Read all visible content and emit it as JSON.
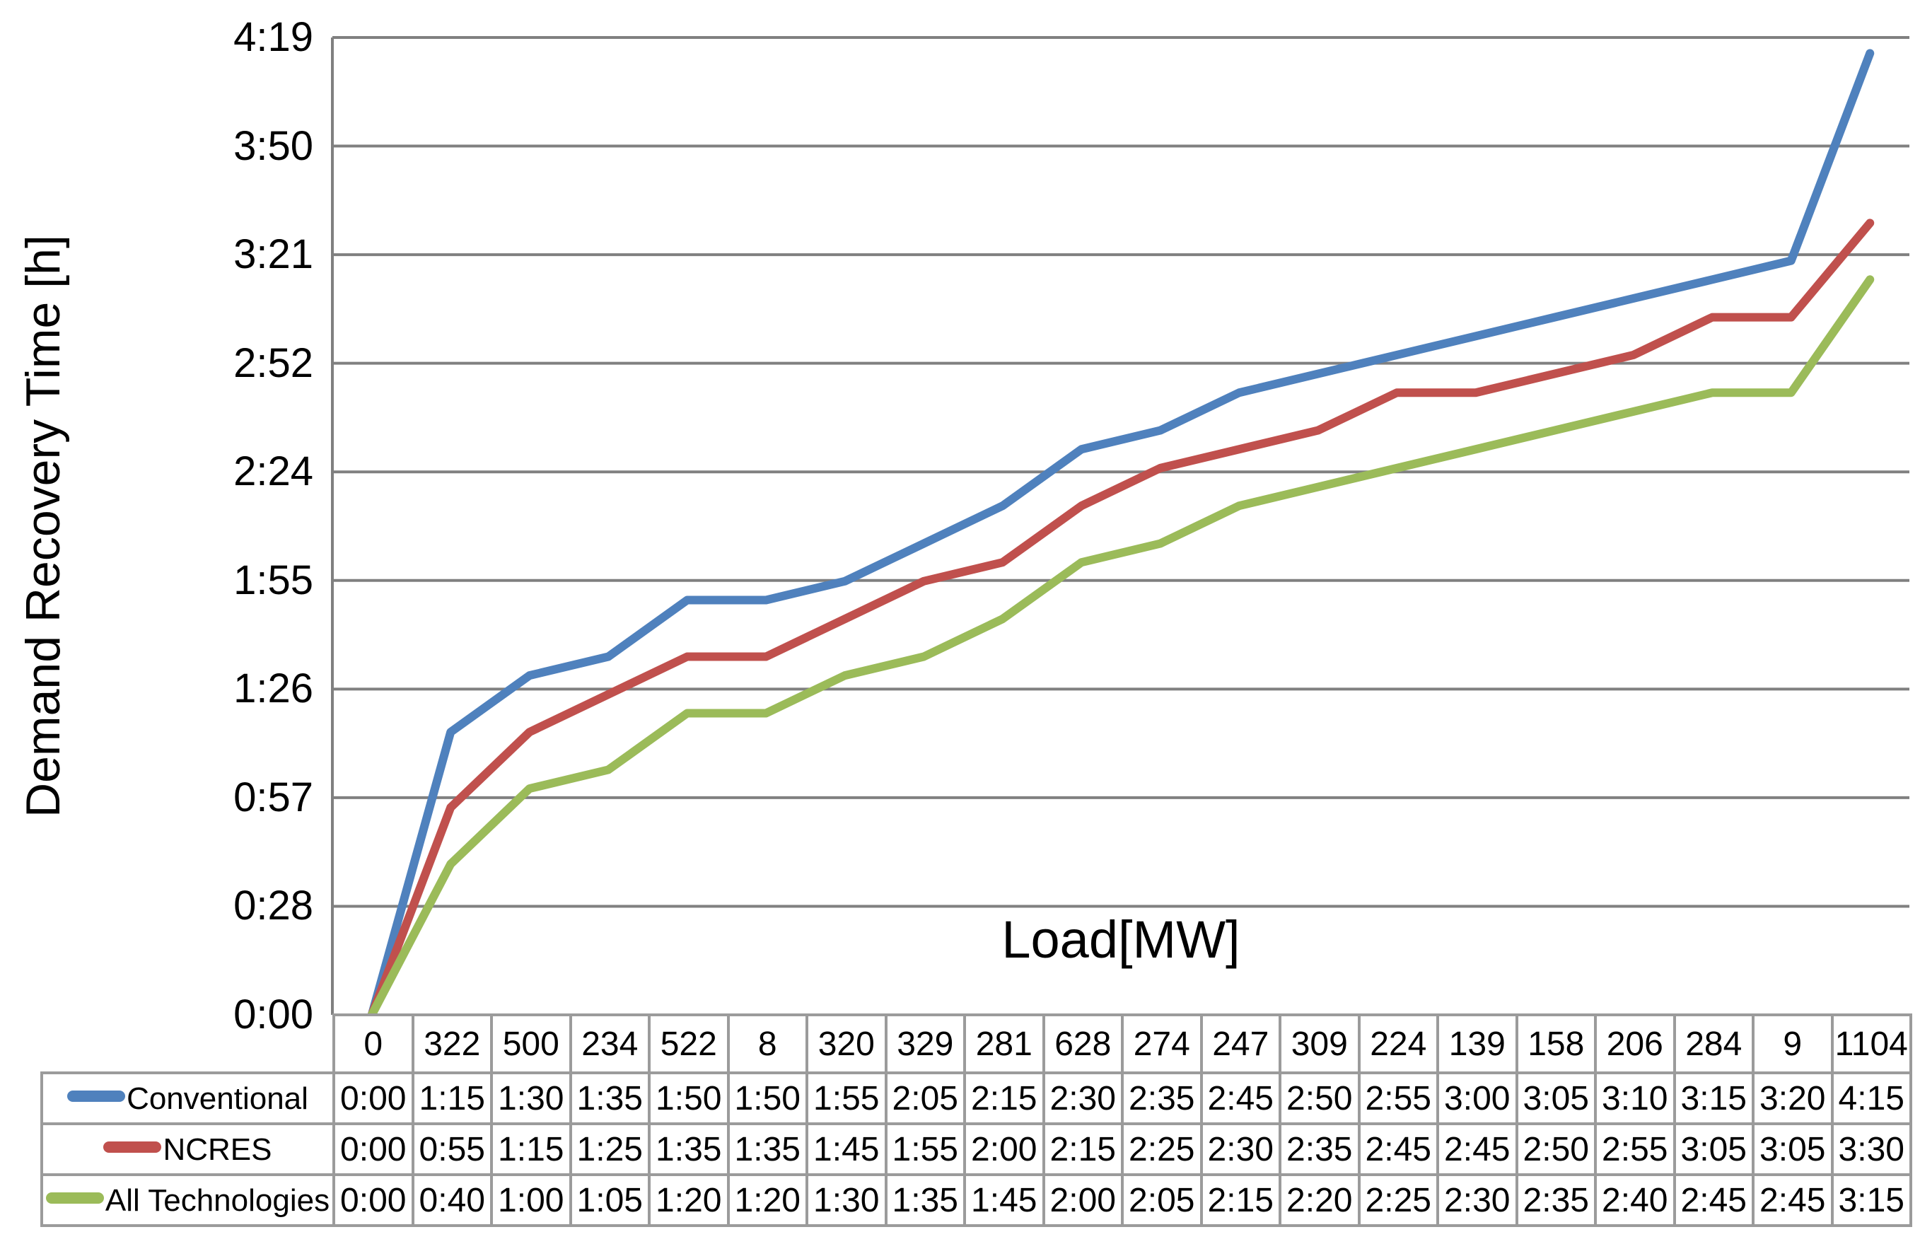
{
  "chart_data": {
    "type": "line",
    "title": "",
    "xlabel": "Load[MW]",
    "ylabel": "Demand Recovery Time [h]",
    "categories": [
      "0",
      "322",
      "500",
      "234",
      "522",
      "8",
      "320",
      "329",
      "281",
      "628",
      "274",
      "247",
      "309",
      "224",
      "139",
      "158",
      "206",
      "284",
      "9",
      "1104"
    ],
    "y_ticks": [
      "0:00",
      "0:28",
      "0:57",
      "1:26",
      "1:55",
      "2:24",
      "2:52",
      "3:21",
      "3:50",
      "4:19"
    ],
    "y_axis": {
      "min_minutes": 0,
      "max_minutes": 259.2,
      "unit": "h:mm"
    },
    "grid": true,
    "legend_position": "table-left",
    "series": [
      {
        "name": "Conventional",
        "color": "#4F81BD",
        "values": [
          "0:00",
          "1:15",
          "1:30",
          "1:35",
          "1:50",
          "1:50",
          "1:55",
          "2:05",
          "2:15",
          "2:30",
          "2:35",
          "2:45",
          "2:50",
          "2:55",
          "3:00",
          "3:05",
          "3:10",
          "3:15",
          "3:20",
          "4:15"
        ]
      },
      {
        "name": "NCRES",
        "color": "#C0504D",
        "values": [
          "0:00",
          "0:55",
          "1:15",
          "1:25",
          "1:35",
          "1:35",
          "1:45",
          "1:55",
          "2:00",
          "2:15",
          "2:25",
          "2:30",
          "2:35",
          "2:45",
          "2:45",
          "2:50",
          "2:55",
          "3:05",
          "3:05",
          "3:30"
        ]
      },
      {
        "name": "All Technologies",
        "color": "#9BBB59",
        "values": [
          "0:00",
          "0:40",
          "1:00",
          "1:05",
          "1:20",
          "1:20",
          "1:30",
          "1:35",
          "1:45",
          "2:00",
          "2:05",
          "2:15",
          "2:20",
          "2:25",
          "2:30",
          "2:35",
          "2:40",
          "2:45",
          "2:45",
          "3:15"
        ]
      }
    ]
  },
  "colors": {
    "gridline": "#808080",
    "axis_line": "#808080",
    "table_border": "#9B9B9B",
    "text": "#000000",
    "background": "#FFFFFF"
  }
}
